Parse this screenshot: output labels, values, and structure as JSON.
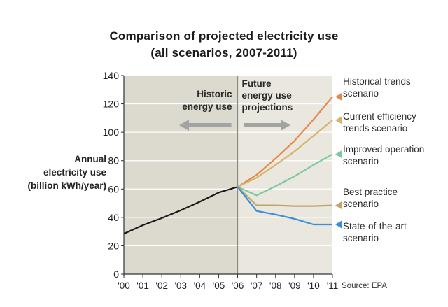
{
  "chart_data": {
    "type": "line",
    "title": "Comparison of projected electricity use",
    "subtitle": "(all scenarios, 2007-2011)",
    "ylabel": [
      "Annual",
      "electricity use",
      "(billion kWh/year)"
    ],
    "ylim": [
      0,
      140
    ],
    "yticks": [
      0,
      20,
      40,
      60,
      80,
      100,
      120,
      140
    ],
    "categories": [
      "'00",
      "'01",
      "'02",
      "'03",
      "'04",
      "'05",
      "'06",
      "'07",
      "'08",
      "'09",
      "'10",
      "'11"
    ],
    "annotations": {
      "historic": [
        "Historic",
        "energy use"
      ],
      "future": [
        "Future",
        "energy use",
        "projections"
      ]
    },
    "source": "Source: EPA",
    "historical": {
      "x": [
        0,
        1,
        2,
        3,
        4,
        5,
        6
      ],
      "values": [
        28.5,
        34.5,
        39.5,
        45,
        51,
        57.5,
        61.5
      ],
      "color": "#1a1a1a"
    },
    "series": [
      {
        "name": [
          "Historical trends",
          "scenario"
        ],
        "color": "#e8874a",
        "x": [
          6,
          7,
          8,
          9,
          10,
          11
        ],
        "values": [
          61.5,
          70,
          81.5,
          94,
          109,
          125
        ]
      },
      {
        "name": [
          "Current efficiency",
          "trends scenario"
        ],
        "color": "#d6b46c",
        "x": [
          6,
          7,
          8,
          9,
          10,
          11
        ],
        "values": [
          61.5,
          68,
          77,
          86.5,
          97.5,
          108.5
        ]
      },
      {
        "name": [
          "Improved operation",
          "scenario"
        ],
        "color": "#7cc9a0",
        "x": [
          6,
          7,
          8,
          9,
          10,
          11
        ],
        "values": [
          61.5,
          55.5,
          62,
          69,
          77,
          84.5
        ]
      },
      {
        "name": [
          "Best practice",
          "scenario"
        ],
        "color": "#c2a36a",
        "x": [
          6,
          7,
          8,
          9,
          10,
          11
        ],
        "values": [
          61.5,
          48.5,
          48.5,
          48,
          48,
          48.5
        ]
      },
      {
        "name": [
          "State-of-the-art",
          "scenario"
        ],
        "color": "#3a8fd6",
        "x": [
          6,
          7,
          8,
          9,
          10,
          11
        ],
        "values": [
          61.5,
          44.5,
          42,
          39,
          35,
          35
        ]
      }
    ],
    "colors": {
      "history_bg": "#dcd9cf",
      "future_bg": "#eae7de",
      "arrow": "#a3a3a3",
      "grid": "#ffffff"
    },
    "grid": true
  }
}
